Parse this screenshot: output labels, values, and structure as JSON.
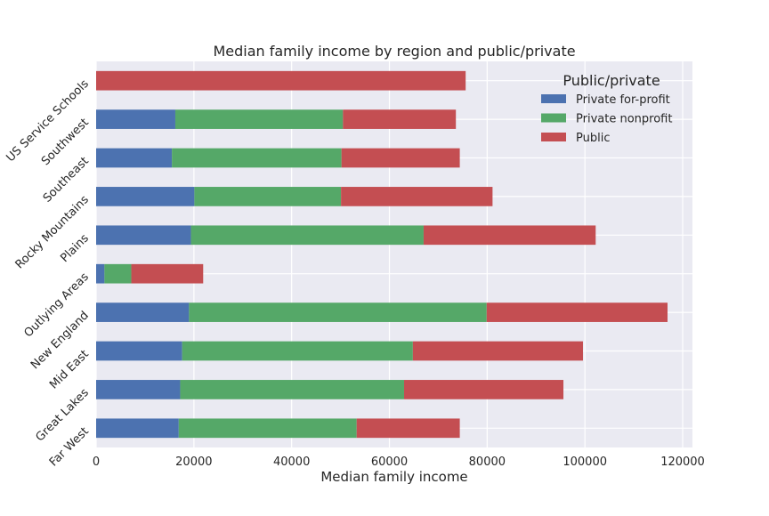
{
  "chart_data": {
    "type": "bar",
    "orientation": "horizontal",
    "stacked": true,
    "title": "Median family income by region and public/private",
    "xlabel": "Median family income",
    "ylabel": "",
    "xlim": [
      0,
      122000
    ],
    "xticks": [
      0,
      20000,
      40000,
      60000,
      80000,
      100000,
      120000
    ],
    "xtick_labels": [
      "0",
      "20000",
      "40000",
      "60000",
      "80000",
      "100000",
      "120000"
    ],
    "grid": true,
    "categories": [
      "Far West",
      "Great Lakes",
      "Mid East",
      "New England",
      "Outlying Areas",
      "Plains",
      "Rocky Mountains",
      "Southeast",
      "Southwest",
      "US Service Schools"
    ],
    "series": [
      {
        "name": "Private for-profit",
        "color": "#4c72b0",
        "values": [
          16900,
          17200,
          17600,
          19000,
          1700,
          19400,
          20100,
          15500,
          16200,
          0
        ]
      },
      {
        "name": "Private nonprofit",
        "color": "#55a868",
        "values": [
          36400,
          45800,
          47200,
          60900,
          5500,
          47600,
          30000,
          34700,
          34300,
          0
        ]
      },
      {
        "name": "Public",
        "color": "#c44e52",
        "values": [
          21100,
          32600,
          34800,
          37000,
          14700,
          35200,
          31000,
          24200,
          23100,
          75600
        ]
      }
    ],
    "legend": {
      "title": "Public/private",
      "position": "top-right"
    },
    "colors": {
      "plot_background": "#eaeaf2",
      "grid": "#ffffff",
      "text": "#262626"
    }
  }
}
